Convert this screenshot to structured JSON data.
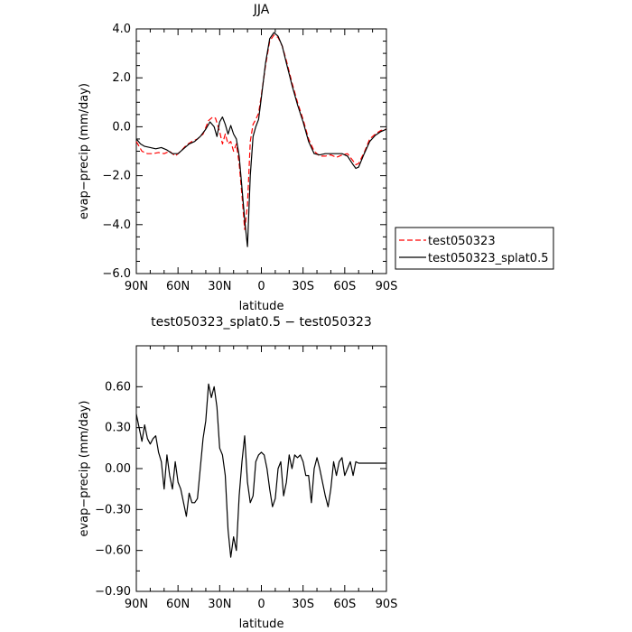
{
  "chart_data": [
    {
      "type": "line",
      "title": "JJA",
      "xlabel": "latitude",
      "ylabel": "evap−precip (mm/day)",
      "xlim": [
        90,
        -90
      ],
      "ylim": [
        -6.0,
        4.0
      ],
      "x_ticks": [
        {
          "value": 90,
          "label": "90N"
        },
        {
          "value": 60,
          "label": "60N"
        },
        {
          "value": 30,
          "label": "30N"
        },
        {
          "value": 0,
          "label": "0"
        },
        {
          "value": -30,
          "label": "30S"
        },
        {
          "value": -60,
          "label": "60S"
        },
        {
          "value": -90,
          "label": "90S"
        }
      ],
      "y_ticks": [
        {
          "value": 4.0,
          "label": "4.0"
        },
        {
          "value": 2.0,
          "label": "2.0"
        },
        {
          "value": 0.0,
          "label": "0.0"
        },
        {
          "value": -2.0,
          "label": "−2.0"
        },
        {
          "value": -4.0,
          "label": "−4.0"
        },
        {
          "value": -6.0,
          "label": "−6.0"
        }
      ],
      "legend": {
        "placement": "right"
      },
      "series": [
        {
          "name": "test050323",
          "color": "#ff0000",
          "dash": "dashed",
          "x": [
            90,
            86,
            82,
            78,
            74,
            70,
            66,
            62,
            58,
            54,
            50,
            46,
            42,
            38,
            35,
            33,
            30,
            28,
            26,
            24,
            22,
            20,
            18,
            16,
            14,
            12,
            10,
            8,
            6,
            4,
            2,
            0,
            -3,
            -6,
            -9,
            -12,
            -15,
            -18,
            -22,
            -26,
            -30,
            -34,
            -38,
            -42,
            -46,
            -50,
            -54,
            -58,
            -62,
            -66,
            -68,
            -70,
            -74,
            -78,
            -82,
            -86,
            -90
          ],
          "y": [
            -0.6,
            -1.0,
            -1.1,
            -1.1,
            -1.05,
            -1.1,
            -1.0,
            -1.2,
            -1.0,
            -0.75,
            -0.6,
            -0.5,
            -0.3,
            0.25,
            0.4,
            0.35,
            -0.2,
            -0.7,
            -0.3,
            -0.7,
            -0.6,
            -1.0,
            -0.7,
            -1.5,
            -2.8,
            -4.2,
            -3.2,
            -0.6,
            0.1,
            0.3,
            0.55,
            1.3,
            2.5,
            3.5,
            3.75,
            3.65,
            3.3,
            2.7,
            1.8,
            1.0,
            0.3,
            -0.5,
            -1.0,
            -1.2,
            -1.2,
            -1.15,
            -1.25,
            -1.15,
            -1.1,
            -1.4,
            -1.55,
            -1.5,
            -1.05,
            -0.5,
            -0.3,
            -0.15,
            -0.1
          ]
        },
        {
          "name": "test050323_splat0.5",
          "color": "#000000",
          "dash": "solid",
          "x": [
            90,
            87,
            84,
            80,
            76,
            72,
            68,
            64,
            60,
            56,
            52,
            48,
            44,
            40,
            37,
            34,
            32,
            30,
            28,
            26,
            24,
            22,
            20,
            18,
            16,
            14,
            12,
            10,
            8,
            6,
            4,
            2,
            0,
            -3,
            -6,
            -9,
            -12,
            -15,
            -18,
            -22,
            -26,
            -30,
            -34,
            -38,
            -42,
            -46,
            -50,
            -54,
            -58,
            -62,
            -66,
            -68,
            -70,
            -74,
            -78,
            -82,
            -86,
            -90
          ],
          "y": [
            -0.5,
            -0.7,
            -0.8,
            -0.85,
            -0.9,
            -0.85,
            -0.95,
            -1.1,
            -1.1,
            -0.9,
            -0.7,
            -0.6,
            -0.4,
            -0.1,
            0.2,
            0.0,
            -0.4,
            0.2,
            0.4,
            0.1,
            -0.3,
            0.05,
            -0.3,
            -0.5,
            -1.2,
            -2.5,
            -3.8,
            -4.9,
            -2.0,
            -0.4,
            0.0,
            0.3,
            1.2,
            2.6,
            3.6,
            3.85,
            3.7,
            3.3,
            2.6,
            1.7,
            0.9,
            0.2,
            -0.6,
            -1.1,
            -1.15,
            -1.1,
            -1.1,
            -1.1,
            -1.1,
            -1.2,
            -1.55,
            -1.7,
            -1.65,
            -1.1,
            -0.6,
            -0.35,
            -0.2,
            -0.1
          ]
        }
      ]
    },
    {
      "type": "line",
      "title": "test050323_splat0.5 − test050323",
      "xlabel": "latitude",
      "ylabel": "evap−precip (mm/day)",
      "xlim": [
        90,
        -90
      ],
      "ylim": [
        -0.9,
        0.9
      ],
      "x_ticks": [
        {
          "value": 90,
          "label": "90N"
        },
        {
          "value": 60,
          "label": "60N"
        },
        {
          "value": 30,
          "label": "30N"
        },
        {
          "value": 0,
          "label": "0"
        },
        {
          "value": -30,
          "label": "30S"
        },
        {
          "value": -60,
          "label": "60S"
        },
        {
          "value": -90,
          "label": "90S"
        }
      ],
      "y_ticks": [
        {
          "value": 0.6,
          "label": "0.60"
        },
        {
          "value": 0.3,
          "label": "0.30"
        },
        {
          "value": 0.0,
          "label": "0.00"
        },
        {
          "value": -0.3,
          "label": "−0.30"
        },
        {
          "value": -0.6,
          "label": "−0.60"
        },
        {
          "value": -0.9,
          "label": "−0.90"
        }
      ],
      "series": [
        {
          "color": "#000000",
          "dash": "solid",
          "x": [
            90,
            88,
            86,
            84,
            82,
            80,
            78,
            76,
            74,
            72,
            70,
            68,
            66,
            64,
            62,
            60,
            58,
            56,
            54,
            52,
            50,
            48,
            46,
            44,
            42,
            40,
            38,
            36,
            34,
            32,
            30,
            28,
            26,
            24,
            22,
            20,
            18,
            16,
            14,
            12,
            10,
            8,
            6,
            4,
            2,
            0,
            -2,
            -4,
            -6,
            -8,
            -10,
            -12,
            -14,
            -16,
            -18,
            -20,
            -22,
            -24,
            -26,
            -28,
            -30,
            -32,
            -34,
            -36,
            -38,
            -40,
            -42,
            -44,
            -46,
            -48,
            -50,
            -52,
            -54,
            -56,
            -58,
            -60,
            -62,
            -64,
            -66,
            -68,
            -70,
            -72,
            -74,
            -76,
            -78,
            -80,
            -82,
            -84,
            -86,
            -88,
            -90
          ],
          "y": [
            0.4,
            0.3,
            0.2,
            0.32,
            0.22,
            0.18,
            0.22,
            0.24,
            0.12,
            0.05,
            -0.15,
            0.1,
            -0.05,
            -0.15,
            0.05,
            -0.1,
            -0.15,
            -0.25,
            -0.35,
            -0.18,
            -0.25,
            -0.25,
            -0.22,
            0.0,
            0.22,
            0.35,
            0.62,
            0.52,
            0.6,
            0.45,
            0.15,
            0.1,
            -0.05,
            -0.45,
            -0.65,
            -0.5,
            -0.6,
            -0.2,
            0.05,
            0.24,
            -0.1,
            -0.25,
            -0.2,
            0.05,
            0.1,
            0.12,
            0.1,
            0.0,
            -0.15,
            -0.28,
            -0.22,
            0.0,
            0.05,
            -0.2,
            -0.1,
            0.1,
            0.0,
            0.1,
            0.08,
            0.1,
            0.05,
            -0.05,
            -0.05,
            -0.25,
            0.0,
            0.08,
            0.0,
            -0.1,
            -0.2,
            -0.28,
            -0.15,
            0.05,
            -0.05,
            0.05,
            0.08,
            -0.05,
            0.0,
            0.05,
            -0.05,
            0.05,
            0.04,
            0.04,
            0.04,
            0.04,
            0.04,
            0.04,
            0.04,
            0.04,
            0.04,
            0.04,
            0.04
          ]
        }
      ]
    }
  ]
}
